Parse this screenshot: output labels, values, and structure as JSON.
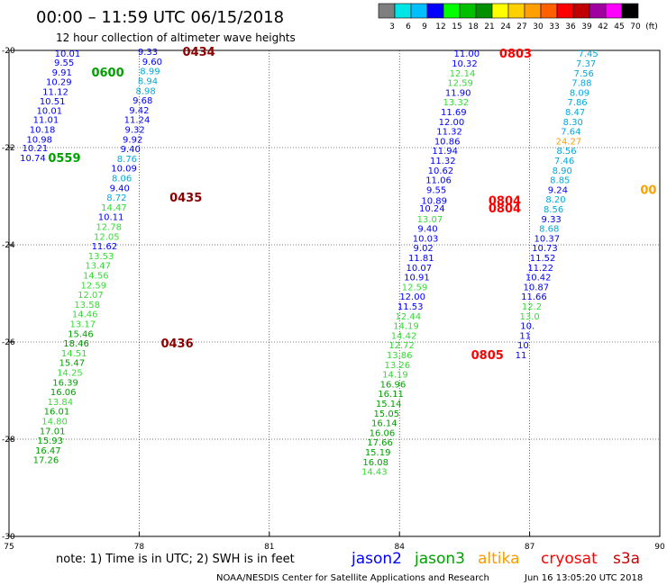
{
  "header": {
    "title": "00:00 – 11:59 UTC 06/15/2018",
    "subtitle": "12 hour collection of altimeter wave heights"
  },
  "colorbar": {
    "labels": [
      "3",
      "6",
      "9",
      "12",
      "15",
      "18",
      "21",
      "24",
      "27",
      "30",
      "33",
      "36",
      "39",
      "42",
      "45",
      "70",
      "(ft)"
    ],
    "colors": [
      "#7f7f7f",
      "#00e5e5",
      "#00bfff",
      "#0000ff",
      "#00ff00",
      "#00c000",
      "#009000",
      "#ffff00",
      "#ffd000",
      "#ffa000",
      "#ff6000",
      "#ff0000",
      "#c00000",
      "#a000a0",
      "#ff00ff",
      "#000000"
    ]
  },
  "footer": {
    "note": "note: 1) Time is in UTC; 2) SWH is in feet",
    "credit": "NOAA/NESDIS Center for Satellite Applications and Research",
    "timestamp": "Jun 16 13:05:20 UTC 2018",
    "legend": [
      {
        "name": "jason2",
        "color": "#0000ff"
      },
      {
        "name": "jason3",
        "color": "#00a000"
      },
      {
        "name": "altika",
        "color": "#ff9900"
      },
      {
        "name": "cryosat",
        "color": "#ff0000"
      },
      {
        "name": "s3a",
        "color": "#cc0000"
      }
    ]
  },
  "chart_data": {
    "type": "scatter",
    "xlim": [
      75,
      90
    ],
    "ylim": [
      -30,
      -20
    ],
    "x_ticks": [
      "75",
      "78",
      "81",
      "84",
      "87",
      "90"
    ],
    "y_ticks": [
      "-20",
      "-22",
      "-24",
      "-26",
      "-28",
      "-30"
    ],
    "grid": true,
    "series": [
      {
        "points": [
          {
            "x": 76.35,
            "y": -20.06,
            "v": "10.01",
            "c": "#0000ff"
          },
          {
            "x": 76.27,
            "y": -20.24,
            "v": "9.55",
            "c": "#0000ff"
          },
          {
            "x": 76.22,
            "y": -20.44,
            "v": "9.91",
            "c": "#0000ff"
          },
          {
            "x": 76.15,
            "y": -20.64,
            "v": "10.29",
            "c": "#0000ff"
          },
          {
            "x": 76.07,
            "y": -20.84,
            "v": "11.12",
            "c": "#0000ff"
          },
          {
            "x": 76.0,
            "y": -21.04,
            "v": "10.51",
            "c": "#0000ff"
          },
          {
            "x": 75.93,
            "y": -21.23,
            "v": "10.01",
            "c": "#0000ff"
          },
          {
            "x": 75.85,
            "y": -21.42,
            "v": "11.01",
            "c": "#0000ff"
          },
          {
            "x": 75.77,
            "y": -21.62,
            "v": "10.18",
            "c": "#0000ff"
          },
          {
            "x": 75.7,
            "y": -21.82,
            "v": "10.98",
            "c": "#0000ff"
          },
          {
            "x": 75.6,
            "y": -22.0,
            "v": "10.21",
            "c": "#0000ff"
          },
          {
            "x": 75.55,
            "y": -22.2,
            "v": "10.74",
            "c": "#0000ff"
          }
        ]
      },
      {
        "points": [
          {
            "x": 78.2,
            "y": -20.02,
            "v": "9.33",
            "c": "#0000ff"
          },
          {
            "x": 78.3,
            "y": -20.22,
            "v": "9.60",
            "c": "#0000ff"
          },
          {
            "x": 78.25,
            "y": -20.42,
            "v": "8.99",
            "c": "#00aadd"
          },
          {
            "x": 78.2,
            "y": -20.62,
            "v": "8.94",
            "c": "#00aadd"
          },
          {
            "x": 78.15,
            "y": -20.82,
            "v": "8.98",
            "c": "#00aadd"
          },
          {
            "x": 78.08,
            "y": -21.02,
            "v": "9.68",
            "c": "#0000ff"
          },
          {
            "x": 78.0,
            "y": -21.22,
            "v": "9.42",
            "c": "#0000ff"
          },
          {
            "x": 77.95,
            "y": -21.42,
            "v": "11.24",
            "c": "#0000ff"
          },
          {
            "x": 77.9,
            "y": -21.62,
            "v": "9.32",
            "c": "#0000ff"
          },
          {
            "x": 77.85,
            "y": -21.82,
            "v": "9.92",
            "c": "#0000ff"
          },
          {
            "x": 77.8,
            "y": -22.02,
            "v": "9.40",
            "c": "#0000ff"
          },
          {
            "x": 77.72,
            "y": -22.22,
            "v": "8.76",
            "c": "#00aadd"
          },
          {
            "x": 77.65,
            "y": -22.42,
            "v": "10.09",
            "c": "#0000ff"
          },
          {
            "x": 77.6,
            "y": -22.62,
            "v": "8.06",
            "c": "#00aadd"
          },
          {
            "x": 77.55,
            "y": -22.82,
            "v": "9.40",
            "c": "#0000ff"
          },
          {
            "x": 77.48,
            "y": -23.02,
            "v": "8.72",
            "c": "#00aadd"
          },
          {
            "x": 77.42,
            "y": -23.22,
            "v": "14.47",
            "c": "#33dd33"
          },
          {
            "x": 77.35,
            "y": -23.42,
            "v": "10.11",
            "c": "#0000ff"
          },
          {
            "x": 77.3,
            "y": -23.62,
            "v": "12.78",
            "c": "#33dd33"
          },
          {
            "x": 77.25,
            "y": -23.82,
            "v": "12.05",
            "c": "#33dd33"
          },
          {
            "x": 77.2,
            "y": -24.02,
            "v": "11.62",
            "c": "#0000ff"
          },
          {
            "x": 77.12,
            "y": -24.22,
            "v": "13.53",
            "c": "#33dd33"
          },
          {
            "x": 77.05,
            "y": -24.42,
            "v": "13.47",
            "c": "#33dd33"
          },
          {
            "x": 77.0,
            "y": -24.62,
            "v": "14.56",
            "c": "#33dd33"
          },
          {
            "x": 76.95,
            "y": -24.82,
            "v": "12.59",
            "c": "#33dd33"
          },
          {
            "x": 76.88,
            "y": -25.02,
            "v": "12.07",
            "c": "#33dd33"
          },
          {
            "x": 76.8,
            "y": -25.22,
            "v": "13.58",
            "c": "#33dd33"
          },
          {
            "x": 76.75,
            "y": -25.42,
            "v": "14.46",
            "c": "#33dd33"
          },
          {
            "x": 76.7,
            "y": -25.62,
            "v": "13.17",
            "c": "#33dd33"
          },
          {
            "x": 76.65,
            "y": -25.82,
            "v": "15.46",
            "c": "#00a000"
          },
          {
            "x": 76.55,
            "y": -26.02,
            "v": "18.46",
            "c": "#009000"
          },
          {
            "x": 76.5,
            "y": -26.22,
            "v": "14.51",
            "c": "#33dd33"
          },
          {
            "x": 76.45,
            "y": -26.42,
            "v": "15.47",
            "c": "#00a000"
          },
          {
            "x": 76.4,
            "y": -26.62,
            "v": "14.25",
            "c": "#33dd33"
          },
          {
            "x": 76.3,
            "y": -26.82,
            "v": "16.39",
            "c": "#00a000"
          },
          {
            "x": 76.25,
            "y": -27.02,
            "v": "16.06",
            "c": "#00a000"
          },
          {
            "x": 76.18,
            "y": -27.22,
            "v": "13.84",
            "c": "#33dd33"
          },
          {
            "x": 76.1,
            "y": -27.42,
            "v": "16.01",
            "c": "#00a000"
          },
          {
            "x": 76.05,
            "y": -27.62,
            "v": "14.80",
            "c": "#33dd33"
          },
          {
            "x": 76.0,
            "y": -27.82,
            "v": "17.01",
            "c": "#00a000"
          },
          {
            "x": 75.95,
            "y": -28.02,
            "v": "15.93",
            "c": "#00a000"
          },
          {
            "x": 75.9,
            "y": -28.22,
            "v": "16.47",
            "c": "#00a000"
          },
          {
            "x": 75.85,
            "y": -28.42,
            "v": "17.26",
            "c": "#00a000"
          }
        ]
      },
      {
        "points": [
          {
            "x": 85.55,
            "y": -20.06,
            "v": "11.00",
            "c": "#0000ff"
          },
          {
            "x": 85.5,
            "y": -20.26,
            "v": "10.32",
            "c": "#0000ff"
          },
          {
            "x": 85.45,
            "y": -20.46,
            "v": "12.14",
            "c": "#33dd33"
          },
          {
            "x": 85.4,
            "y": -20.66,
            "v": "12.59",
            "c": "#33dd33"
          },
          {
            "x": 85.35,
            "y": -20.86,
            "v": "11.90",
            "c": "#0000ff"
          },
          {
            "x": 85.3,
            "y": -21.06,
            "v": "13.32",
            "c": "#33dd33"
          },
          {
            "x": 85.25,
            "y": -21.26,
            "v": "11.69",
            "c": "#0000ff"
          },
          {
            "x": 85.2,
            "y": -21.46,
            "v": "12.00",
            "c": "#0000ff"
          },
          {
            "x": 85.15,
            "y": -21.66,
            "v": "11.32",
            "c": "#0000ff"
          },
          {
            "x": 85.1,
            "y": -21.86,
            "v": "10.86",
            "c": "#0000ff"
          },
          {
            "x": 85.05,
            "y": -22.06,
            "v": "11.94",
            "c": "#0000ff"
          },
          {
            "x": 85.0,
            "y": -22.26,
            "v": "11.32",
            "c": "#0000ff"
          },
          {
            "x": 84.95,
            "y": -22.46,
            "v": "10.62",
            "c": "#0000ff"
          },
          {
            "x": 84.9,
            "y": -22.66,
            "v": "11.06",
            "c": "#0000ff"
          },
          {
            "x": 84.85,
            "y": -22.86,
            "v": "9.55",
            "c": "#0000ff"
          },
          {
            "x": 84.8,
            "y": -23.08,
            "v": "10.89",
            "c": "#0000ff"
          },
          {
            "x": 84.75,
            "y": -23.24,
            "v": "10.24",
            "c": "#0000ff"
          },
          {
            "x": 84.7,
            "y": -23.46,
            "v": "13.07",
            "c": "#33dd33"
          },
          {
            "x": 84.65,
            "y": -23.66,
            "v": "9.40",
            "c": "#0000ff"
          },
          {
            "x": 84.6,
            "y": -23.86,
            "v": "10.03",
            "c": "#0000ff"
          },
          {
            "x": 84.55,
            "y": -24.06,
            "v": "9.02",
            "c": "#0000ff"
          },
          {
            "x": 84.5,
            "y": -24.26,
            "v": "11.81",
            "c": "#0000ff"
          },
          {
            "x": 84.45,
            "y": -24.46,
            "v": "10.07",
            "c": "#0000ff"
          },
          {
            "x": 84.4,
            "y": -24.66,
            "v": "10.91",
            "c": "#0000ff"
          },
          {
            "x": 84.35,
            "y": -24.86,
            "v": "12.59",
            "c": "#33dd33"
          },
          {
            "x": 84.3,
            "y": -25.06,
            "v": "12.00",
            "c": "#0000ff"
          },
          {
            "x": 84.25,
            "y": -25.26,
            "v": "11.53",
            "c": "#0000ff"
          },
          {
            "x": 84.2,
            "y": -25.46,
            "v": "12.44",
            "c": "#33dd33"
          },
          {
            "x": 84.15,
            "y": -25.66,
            "v": "14.19",
            "c": "#33dd33"
          },
          {
            "x": 84.1,
            "y": -25.86,
            "v": "14.42",
            "c": "#33dd33"
          },
          {
            "x": 84.05,
            "y": -26.06,
            "v": "12.72",
            "c": "#33dd33"
          },
          {
            "x": 84.0,
            "y": -26.26,
            "v": "13.86",
            "c": "#33dd33"
          },
          {
            "x": 83.95,
            "y": -26.46,
            "v": "13.26",
            "c": "#33dd33"
          },
          {
            "x": 83.9,
            "y": -26.66,
            "v": "14.19",
            "c": "#33dd33"
          },
          {
            "x": 83.85,
            "y": -26.86,
            "v": "16.96",
            "c": "#00a000"
          },
          {
            "x": 83.8,
            "y": -27.06,
            "v": "16.11",
            "c": "#00a000"
          },
          {
            "x": 83.75,
            "y": -27.26,
            "v": "15.14",
            "c": "#00a000"
          },
          {
            "x": 83.7,
            "y": -27.46,
            "v": "15.05",
            "c": "#00a000"
          },
          {
            "x": 83.65,
            "y": -27.66,
            "v": "16.14",
            "c": "#00a000"
          },
          {
            "x": 83.6,
            "y": -27.86,
            "v": "16.06",
            "c": "#00a000"
          },
          {
            "x": 83.55,
            "y": -28.06,
            "v": "17.66",
            "c": "#00a000"
          },
          {
            "x": 83.5,
            "y": -28.26,
            "v": "15.19",
            "c": "#00a000"
          },
          {
            "x": 83.45,
            "y": -28.46,
            "v": "16.08",
            "c": "#00a000"
          },
          {
            "x": 83.42,
            "y": -28.66,
            "v": "14.43",
            "c": "#33dd33"
          }
        ]
      },
      {
        "points": [
          {
            "x": 88.35,
            "y": -20.06,
            "v": "7.45",
            "c": "#00aadd"
          },
          {
            "x": 88.3,
            "y": -20.26,
            "v": "7.37",
            "c": "#00aadd"
          },
          {
            "x": 88.25,
            "y": -20.46,
            "v": "7.56",
            "c": "#00aadd"
          },
          {
            "x": 88.2,
            "y": -20.66,
            "v": "7.88",
            "c": "#00aadd"
          },
          {
            "x": 88.15,
            "y": -20.86,
            "v": "8.09",
            "c": "#00aadd"
          },
          {
            "x": 88.1,
            "y": -21.06,
            "v": "7.86",
            "c": "#00aadd"
          },
          {
            "x": 88.05,
            "y": -21.26,
            "v": "8.47",
            "c": "#00aadd"
          },
          {
            "x": 88.0,
            "y": -21.46,
            "v": "8.30",
            "c": "#00aadd"
          },
          {
            "x": 87.95,
            "y": -21.66,
            "v": "7.64",
            "c": "#00aadd"
          },
          {
            "x": 87.9,
            "y": -21.86,
            "v": "24.27",
            "c": "#ffa000"
          },
          {
            "x": 87.85,
            "y": -22.06,
            "v": "8.56",
            "c": "#00aadd"
          },
          {
            "x": 87.8,
            "y": -22.26,
            "v": "7.46",
            "c": "#00aadd"
          },
          {
            "x": 87.75,
            "y": -22.46,
            "v": "8.90",
            "c": "#00aadd"
          },
          {
            "x": 87.7,
            "y": -22.66,
            "v": "8.85",
            "c": "#00aadd"
          },
          {
            "x": 87.65,
            "y": -22.86,
            "v": "9.24",
            "c": "#0000ff"
          },
          {
            "x": 87.6,
            "y": -23.06,
            "v": "8.20",
            "c": "#00aadd"
          },
          {
            "x": 87.55,
            "y": -23.26,
            "v": "8.56",
            "c": "#00aadd"
          },
          {
            "x": 87.5,
            "y": -23.46,
            "v": "9.33",
            "c": "#0000ff"
          },
          {
            "x": 87.45,
            "y": -23.66,
            "v": "8.68",
            "c": "#00aadd"
          },
          {
            "x": 87.4,
            "y": -23.86,
            "v": "10.37",
            "c": "#0000ff"
          },
          {
            "x": 87.35,
            "y": -24.06,
            "v": "10.73",
            "c": "#0000ff"
          },
          {
            "x": 87.3,
            "y": -24.26,
            "v": "11.52",
            "c": "#0000ff"
          },
          {
            "x": 87.25,
            "y": -24.46,
            "v": "11.22",
            "c": "#0000ff"
          },
          {
            "x": 87.2,
            "y": -24.66,
            "v": "10.42",
            "c": "#0000ff"
          },
          {
            "x": 87.15,
            "y": -24.86,
            "v": "10.87",
            "c": "#0000ff"
          },
          {
            "x": 87.1,
            "y": -25.06,
            "v": "11.66",
            "c": "#0000ff"
          },
          {
            "x": 87.05,
            "y": -25.26,
            "v": "12.2",
            "c": "#33dd33"
          },
          {
            "x": 87.0,
            "y": -25.46,
            "v": "13.0",
            "c": "#33dd33"
          },
          {
            "x": 86.95,
            "y": -25.66,
            "v": "10.",
            "c": "#0000ff"
          },
          {
            "x": 86.9,
            "y": -25.86,
            "v": "11",
            "c": "#0000ff"
          },
          {
            "x": 86.85,
            "y": -26.06,
            "v": "10",
            "c": "#0000ff"
          },
          {
            "x": 86.8,
            "y": -26.26,
            "v": "11",
            "c": "#0000ff"
          }
        ]
      }
    ],
    "annotations": [
      {
        "text": "0434",
        "x": 79.0,
        "y": -20.02,
        "c": "#8b0000"
      },
      {
        "text": "0600",
        "x": 76.9,
        "y": -20.44,
        "c": "#00a000"
      },
      {
        "text": "0559",
        "x": 75.9,
        "y": -22.2,
        "c": "#00a000"
      },
      {
        "text": "0435",
        "x": 78.7,
        "y": -23.02,
        "c": "#8b0000"
      },
      {
        "text": "0436",
        "x": 78.5,
        "y": -26.02,
        "c": "#8b0000"
      },
      {
        "text": "0803",
        "x": 86.3,
        "y": -20.06,
        "c": "#ff0000"
      },
      {
        "text": "0804",
        "x": 86.05,
        "y": -23.08,
        "c": "#ff0000"
      },
      {
        "text": "0804",
        "x": 86.05,
        "y": -23.24,
        "c": "#ff0000"
      },
      {
        "text": "0805",
        "x": 85.65,
        "y": -26.26,
        "c": "#ff0000"
      },
      {
        "text": "00",
        "x": 89.55,
        "y": -22.86,
        "c": "#ffa000"
      }
    ]
  }
}
